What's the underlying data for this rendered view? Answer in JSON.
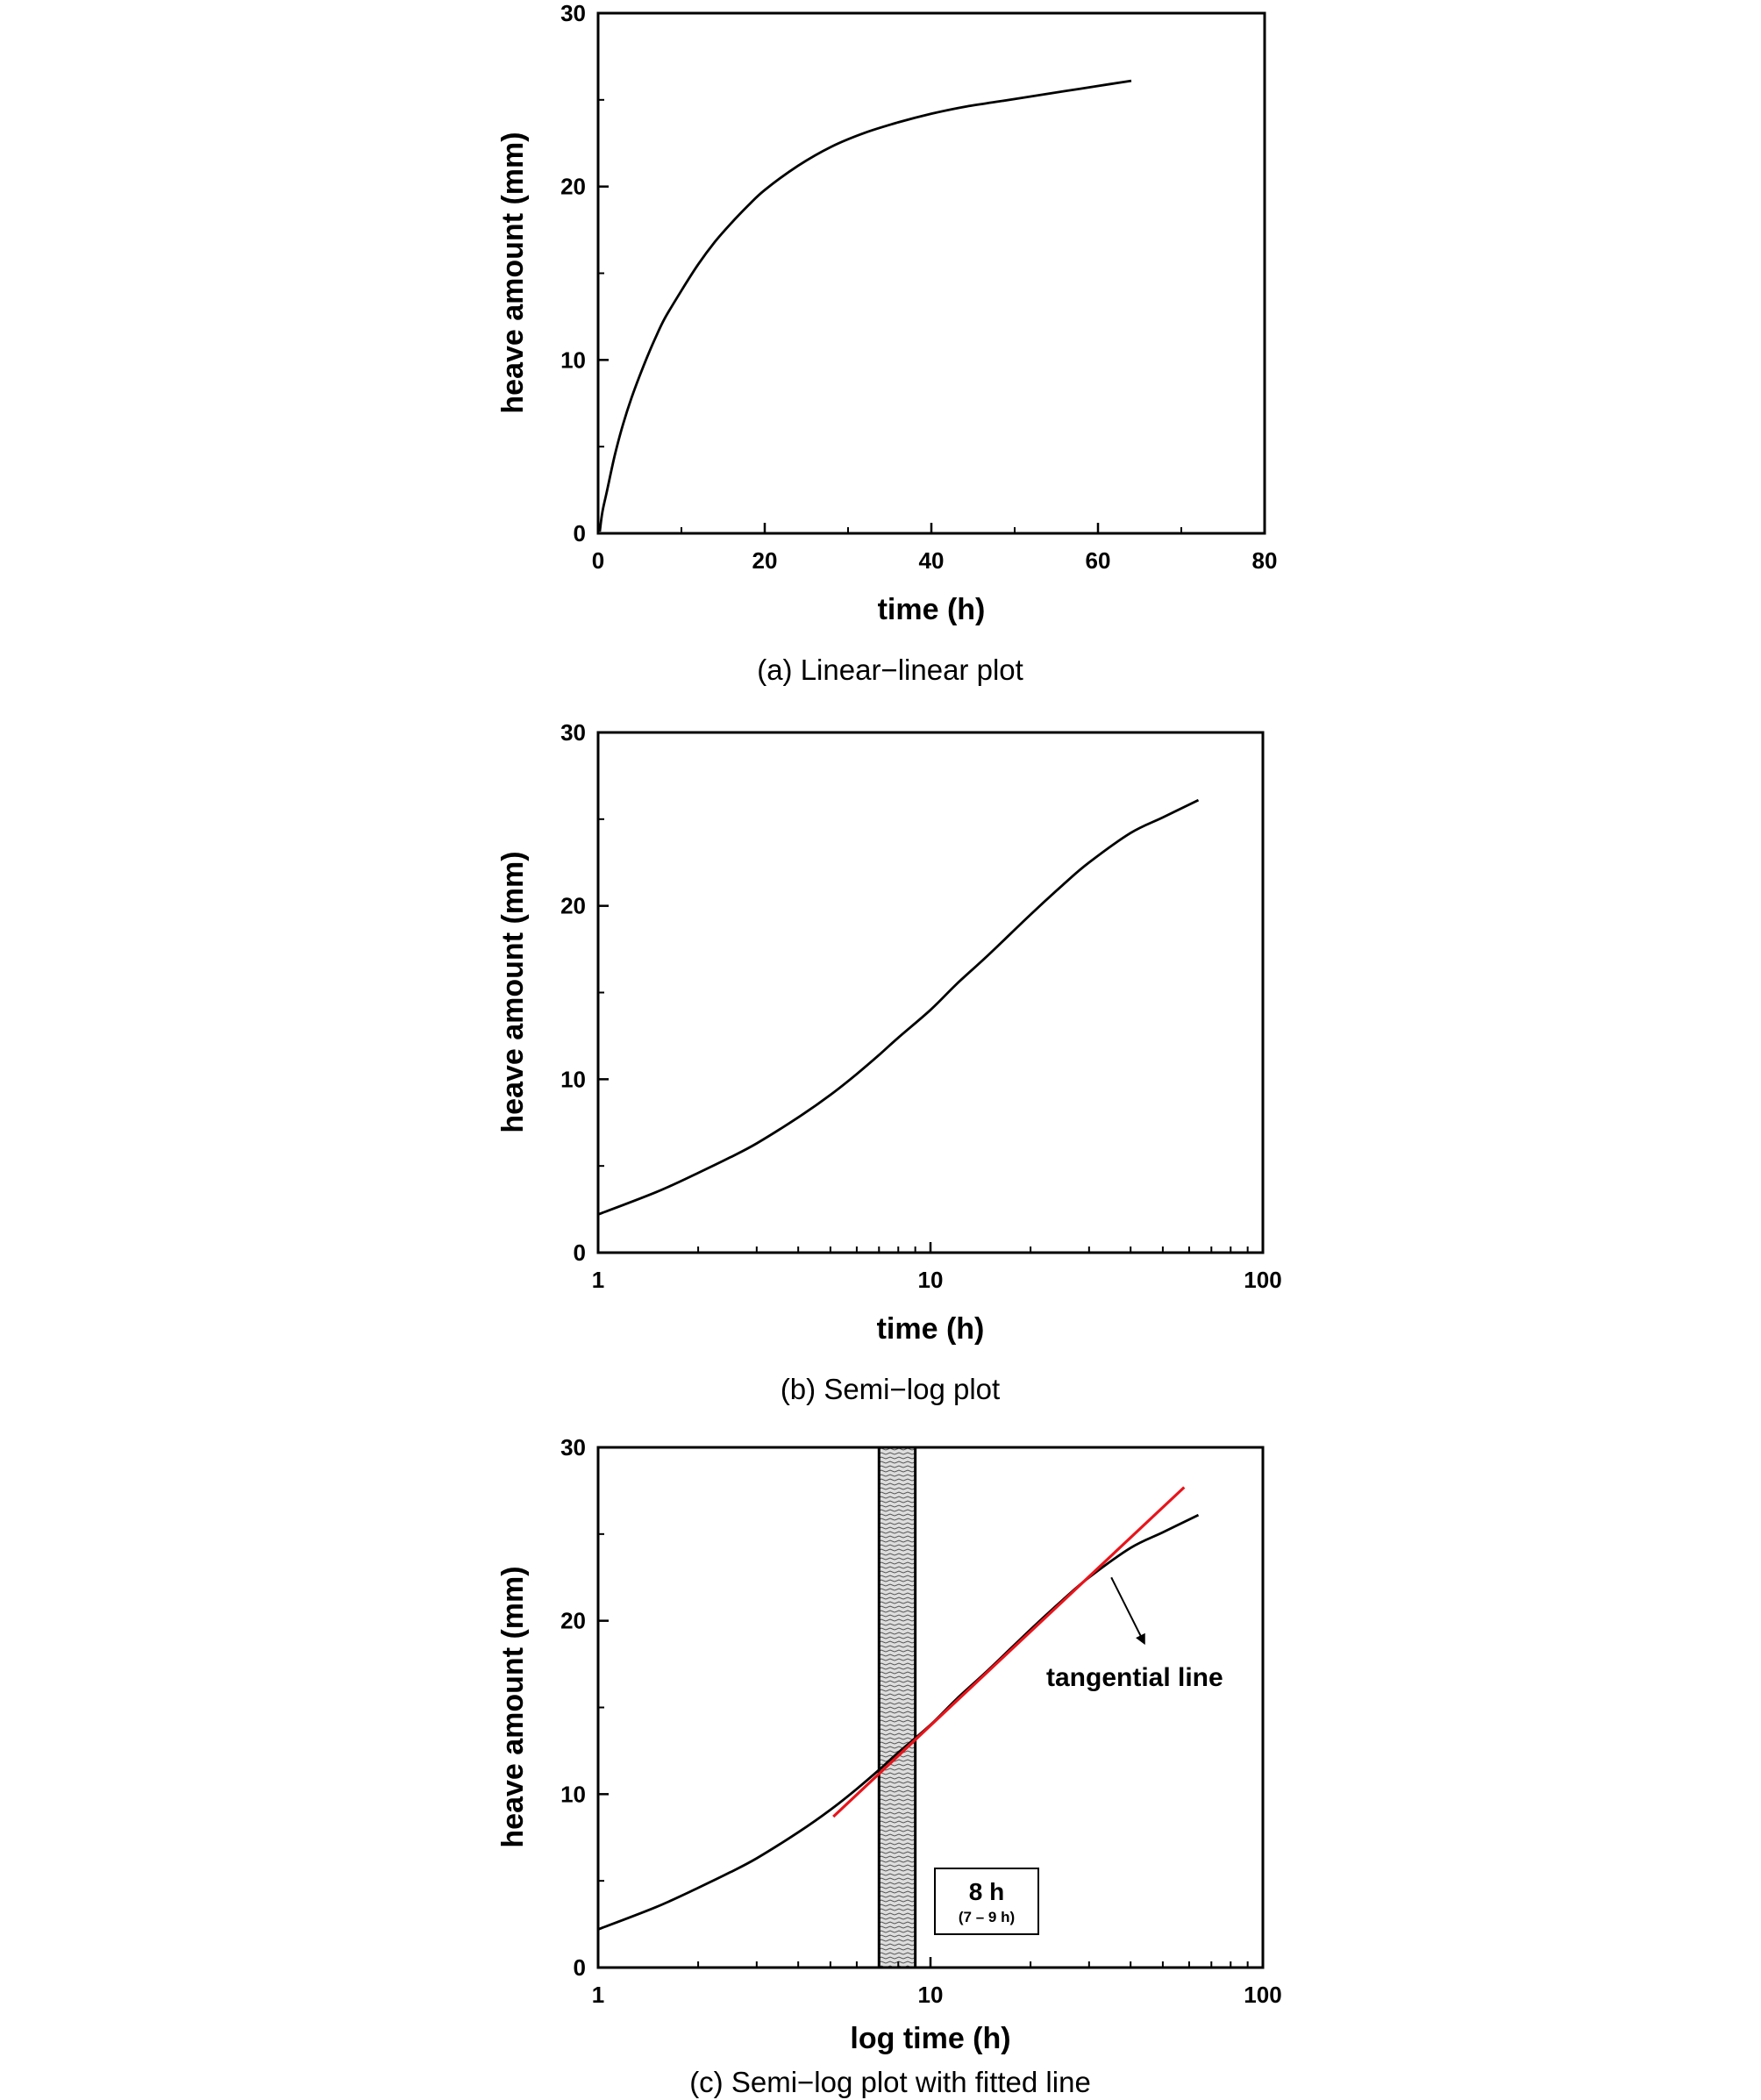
{
  "chart_data": [
    {
      "type": "line",
      "caption": "(a) Linear−linear plot",
      "xlabel": "time (h)",
      "ylabel": "heave amount (mm)",
      "xscale": "linear",
      "xlim": [
        0,
        80
      ],
      "ylim": [
        0,
        30
      ],
      "xticks": [
        0,
        20,
        40,
        60,
        80
      ],
      "xtick_labels": [
        "0",
        "20",
        "40",
        "60",
        "80"
      ],
      "yticks": [
        0,
        10,
        20,
        30
      ],
      "ytick_labels": [
        "0",
        "10",
        "20",
        "30"
      ],
      "grid": false,
      "series": [
        {
          "x": [
            0.2,
            0.5,
            1,
            2,
            3,
            4,
            5,
            6,
            7,
            8,
            10,
            12,
            14,
            16,
            18,
            20,
            24,
            28,
            32,
            36,
            40,
            44,
            48,
            52,
            56,
            60,
            64
          ],
          "y": [
            0.1,
            1.2,
            2.3,
            4.5,
            6.3,
            7.8,
            9.1,
            10.3,
            11.4,
            12.4,
            14.0,
            15.5,
            16.8,
            17.9,
            18.9,
            19.8,
            21.2,
            22.3,
            23.1,
            23.7,
            24.2,
            24.6,
            24.9,
            25.2,
            25.5,
            25.8,
            26.1
          ],
          "color": "#000000"
        }
      ]
    },
    {
      "type": "line",
      "caption": "(b) Semi−log plot",
      "xlabel": "time (h)",
      "ylabel": "heave amount (mm)",
      "xscale": "log",
      "xlim": [
        1,
        100
      ],
      "ylim": [
        0,
        30
      ],
      "xticks": [
        1,
        10,
        100
      ],
      "xtick_labels": [
        "1",
        "10",
        "100"
      ],
      "yticks": [
        0,
        10,
        20,
        30
      ],
      "ytick_labels": [
        "0",
        "10",
        "20",
        "30"
      ],
      "grid": false,
      "series": [
        {
          "x": [
            1,
            1.5,
            2,
            2.5,
            3,
            4,
            5,
            6,
            7,
            8,
            10,
            12,
            15,
            20,
            25,
            30,
            40,
            50,
            64
          ],
          "y": [
            2.2,
            3.5,
            4.6,
            5.5,
            6.3,
            7.8,
            9.1,
            10.3,
            11.4,
            12.4,
            14.0,
            15.5,
            17.2,
            19.5,
            21.2,
            22.5,
            24.2,
            25.1,
            26.1
          ],
          "color": "#000000"
        }
      ]
    },
    {
      "type": "line",
      "caption": "(c) Semi−log plot with fitted line",
      "xlabel": "log time (h)",
      "ylabel": "heave amount (mm)",
      "xscale": "log",
      "xlim": [
        1,
        100
      ],
      "ylim": [
        0,
        30
      ],
      "xticks": [
        1,
        10,
        100
      ],
      "xtick_labels": [
        "1",
        "10",
        "100"
      ],
      "yticks": [
        0,
        10,
        20,
        30
      ],
      "ytick_labels": [
        "0",
        "10",
        "20",
        "30"
      ],
      "grid": false,
      "series": [
        {
          "x": [
            1,
            1.5,
            2,
            2.5,
            3,
            4,
            5,
            6,
            7,
            8,
            10,
            12,
            15,
            20,
            25,
            30,
            40,
            50,
            64
          ],
          "y": [
            2.2,
            3.5,
            4.6,
            5.5,
            6.3,
            7.8,
            9.1,
            10.3,
            11.4,
            12.4,
            14.0,
            15.5,
            17.2,
            19.5,
            21.2,
            22.5,
            24.2,
            25.1,
            26.1
          ],
          "color": "#000000"
        },
        {
          "x": [
            5.1,
            58
          ],
          "y": [
            8.7,
            27.7
          ],
          "color": "#e8141b"
        }
      ],
      "shaded_band": {
        "x_range": [
          7,
          9
        ]
      },
      "annotations": {
        "tangent_label": "tangential line",
        "tangent_arrow_from": [
          35,
          22.5
        ],
        "tangent_arrow_to": [
          44,
          18.7
        ],
        "box_title": "8 h",
        "box_subtitle": "(7 – 9 h)"
      }
    }
  ]
}
